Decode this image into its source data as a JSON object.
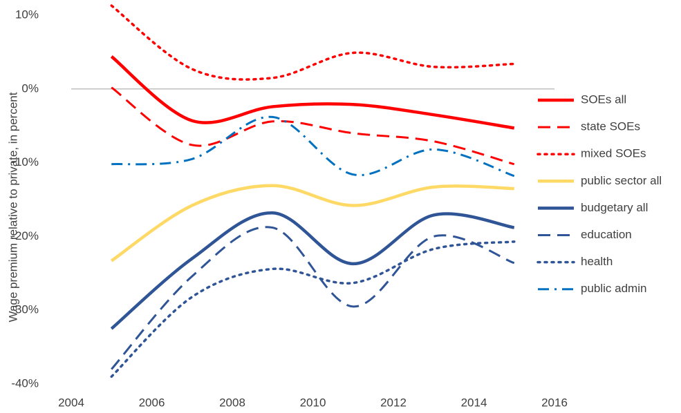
{
  "chart_data": {
    "type": "line",
    "y_axis_label": "Wage premium relative to private, in percent",
    "x": [
      2005,
      2007,
      2009,
      2011,
      2013,
      2015
    ],
    "xlim": [
      2004,
      2016
    ],
    "xticks": [
      2004,
      2006,
      2008,
      2010,
      2012,
      2014,
      2016
    ],
    "ylim": [
      -40,
      10
    ],
    "yticks": [
      {
        "value": -40,
        "label": "-40%"
      },
      {
        "value": -30,
        "label": "-30%"
      },
      {
        "value": -20,
        "label": "-20%"
      },
      {
        "value": -10,
        "label": "-10%"
      },
      {
        "value": 0,
        "label": "0%"
      },
      {
        "value": 10,
        "label": "10%"
      }
    ],
    "smooth": true,
    "legend": "right",
    "series": [
      {
        "name": "SOEs all",
        "color": "#ff0000",
        "dash": "solid",
        "values": [
          4.4,
          -4.3,
          -2.4,
          -2.1,
          -3.5,
          -5.3
        ]
      },
      {
        "name": "state SOEs",
        "color": "#ff0000",
        "dash": "dashed",
        "values": [
          0.2,
          -7.6,
          -4.4,
          -6.0,
          -7.1,
          -10.2
        ]
      },
      {
        "name": "mixed SOEs",
        "color": "#ff0000",
        "dash": "dotted",
        "values": [
          11.3,
          2.7,
          1.5,
          4.9,
          3.0,
          3.4
        ]
      },
      {
        "name": "public sector all",
        "color": "#ffd966",
        "dash": "solid",
        "values": [
          -23.3,
          -15.8,
          -13.1,
          -15.8,
          -13.3,
          -13.5
        ]
      },
      {
        "name": "budgetary all",
        "color": "#2f5597",
        "dash": "solid",
        "values": [
          -32.5,
          -23.0,
          -16.8,
          -23.7,
          -17.1,
          -18.8
        ]
      },
      {
        "name": "education",
        "color": "#2f5597",
        "dash": "dashed",
        "values": [
          -38.0,
          -25.4,
          -18.8,
          -29.5,
          -20.0,
          -23.6
        ]
      },
      {
        "name": "health",
        "color": "#2f5597",
        "dash": "dotted",
        "values": [
          -39.0,
          -28.2,
          -24.4,
          -26.3,
          -21.7,
          -20.7
        ]
      },
      {
        "name": "public admin",
        "color": "#0070c0",
        "dash": "dashdot",
        "values": [
          -10.2,
          -9.5,
          -3.8,
          -11.6,
          -8.2,
          -11.8
        ]
      }
    ]
  }
}
